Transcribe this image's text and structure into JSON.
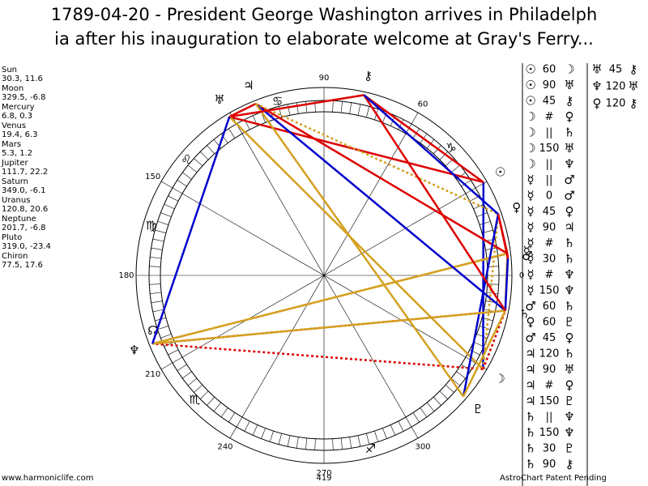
{
  "header": {
    "title_lines": [
      "1789-04-20 - President George Washington arrives in Philadelph",
      "ia after his inauguration to elaborate welcome at Gray's Ferry..."
    ]
  },
  "planets": [
    {
      "name": "Sun",
      "symbol": "☉",
      "coords": "30.3, 11.6"
    },
    {
      "name": "Moon",
      "symbol": "☽",
      "coords": "329.5, -6.8"
    },
    {
      "name": "Mercury",
      "symbol": "☿",
      "coords": "6.8, 0.3"
    },
    {
      "name": "Venus",
      "symbol": "♀",
      "coords": "19.4, 6.3"
    },
    {
      "name": "Mars",
      "symbol": "♂",
      "coords": "5.3, 1.2"
    },
    {
      "name": "Jupiter",
      "symbol": "♃",
      "coords": "111.7, 22.2"
    },
    {
      "name": "Saturn",
      "symbol": "♄",
      "coords": "349.0, -6.1"
    },
    {
      "name": "Uranus",
      "symbol": "♅",
      "coords": "120.8, 20.6"
    },
    {
      "name": "Neptune",
      "symbol": "♆",
      "coords": "201.7, -6.8"
    },
    {
      "name": "Pluto",
      "symbol": "♇",
      "coords": "319.0, -23.4"
    },
    {
      "name": "Chiron",
      "symbol": "⚷",
      "coords": "77.5, 17.6"
    }
  ],
  "wheel": {
    "degree_labels": [
      "90",
      "60",
      "150",
      "180",
      "210",
      "240",
      "270",
      "300",
      "0"
    ],
    "sign_labels": [
      "♋",
      "♌",
      "♍",
      "☊",
      "♏",
      "♐",
      "♑"
    ]
  },
  "aspects": {
    "col1": [
      [
        "☉",
        "60",
        "☽"
      ],
      [
        "☉",
        "90",
        "♅"
      ],
      [
        "☉",
        "45",
        "⚷"
      ],
      [
        "☽",
        "#",
        "♀"
      ],
      [
        "☽",
        "||",
        "♄"
      ],
      [
        "☽",
        "150",
        "♅"
      ],
      [
        "☽",
        "||",
        "♆"
      ],
      [
        "☿",
        "||",
        "♂"
      ],
      [
        "☿",
        "0",
        "♂"
      ],
      [
        "☿",
        "45",
        "♀"
      ],
      [
        "☿",
        "90",
        "♃"
      ],
      [
        "☿",
        "#",
        "♄"
      ],
      [
        "☿",
        "30",
        "♄"
      ],
      [
        "☿",
        "#",
        "♆"
      ],
      [
        "☿",
        "150",
        "♆"
      ],
      [
        "♂",
        "60",
        "♄"
      ],
      [
        "♀",
        "60",
        "♇"
      ],
      [
        "♂",
        "45",
        "♀"
      ],
      [
        "♃",
        "120",
        "♄"
      ],
      [
        "♃",
        "90",
        "♅"
      ],
      [
        "♃",
        "#",
        "♀"
      ],
      [
        "♃",
        "150",
        "♇"
      ],
      [
        "♄",
        "||",
        "♆"
      ],
      [
        "♄",
        "150",
        "♆"
      ],
      [
        "♄",
        "30",
        "♇"
      ],
      [
        "♄",
        "90",
        "⚷"
      ]
    ],
    "col2": [
      [
        "♅",
        "45",
        "⚷"
      ],
      [
        "♆",
        "120",
        "♅"
      ],
      [
        "♀",
        "120",
        "⚷"
      ]
    ],
    "colors": {
      "60": "#0000cc",
      "120": "#0000cc",
      "90": "#dd0000",
      "45": "#dd0000",
      "0": "#dd0000",
      "180": "#dd0000",
      "150": "#d4a020",
      "30": "#d4a020",
      "||": "#dd0000",
      "#": "#d4a020"
    }
  },
  "footer": {
    "left": "www.harmoniclife.com",
    "center": "419",
    "right": "AstroChart Patent Pending"
  }
}
